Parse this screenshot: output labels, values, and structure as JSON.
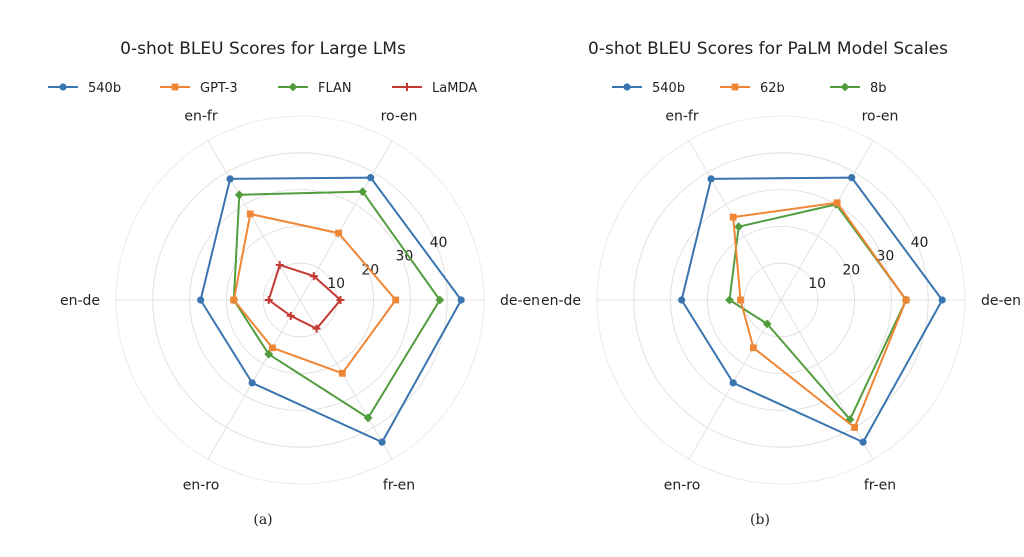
{
  "chart_data": [
    {
      "type": "radar",
      "panel_label": "(a)",
      "title": "0-shot BLEU Scores for Large LMs",
      "categories": [
        "de-en",
        "ro-en",
        "en-fr",
        "en-de",
        "en-ro",
        "fr-en"
      ],
      "rlim": [
        0,
        50
      ],
      "rticks": [
        10,
        20,
        30,
        40
      ],
      "grid": true,
      "legend_position": "top",
      "series": [
        {
          "name": "540b",
          "color": "#3a75af",
          "marker": "circle",
          "values": [
            43.8,
            38.4,
            38.0,
            27.0,
            26.0,
            44.6
          ]
        },
        {
          "name": "GPT-3",
          "color": "#ef8636",
          "marker": "square",
          "values": [
            26.0,
            21.0,
            27.0,
            18.0,
            15.0,
            23.0
          ]
        },
        {
          "name": "FLAN",
          "color": "#519d3e",
          "marker": "diamond",
          "values": [
            38.0,
            34.0,
            33.0,
            18.0,
            17.0,
            37.0
          ]
        },
        {
          "name": "LaMDA",
          "color": "#c53933",
          "marker": "plus",
          "values": [
            11.0,
            7.5,
            11.0,
            8.5,
            5.0,
            9.0
          ]
        }
      ]
    },
    {
      "type": "radar",
      "panel_label": "(b)",
      "title": "0-shot BLEU Scores for PaLM Model Scales",
      "categories": [
        "de-en",
        "ro-en",
        "en-fr",
        "en-de",
        "en-ro",
        "fr-en"
      ],
      "rlim": [
        0,
        50
      ],
      "rticks": [
        10,
        20,
        30,
        40
      ],
      "grid": true,
      "legend_position": "top",
      "series": [
        {
          "name": "540b",
          "color": "#3a75af",
          "marker": "circle",
          "values": [
            43.8,
            38.4,
            38.0,
            27.0,
            26.0,
            44.6
          ]
        },
        {
          "name": "62b",
          "color": "#ef8636",
          "marker": "square",
          "values": [
            34.0,
            30.5,
            26.0,
            11.0,
            15.0,
            40.0
          ]
        },
        {
          "name": "8b",
          "color": "#519d3e",
          "marker": "diamond",
          "values": [
            34.0,
            30.0,
            23.0,
            14.0,
            7.5,
            37.5
          ]
        }
      ]
    }
  ]
}
